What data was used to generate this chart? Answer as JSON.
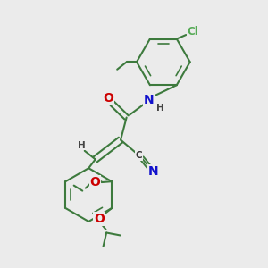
{
  "bg": "#ebebeb",
  "bc": "#3d7a3d",
  "lw": 1.5,
  "lw_inner": 1.2,
  "fs": 8.5,
  "fs_sm": 7.5,
  "atom_colors": {
    "O": "#cc0000",
    "N": "#1111cc",
    "Cl": "#55aa55",
    "H": "#444444",
    "C": "#333333"
  },
  "figsize": [
    3.0,
    3.0
  ],
  "dpi": 100
}
